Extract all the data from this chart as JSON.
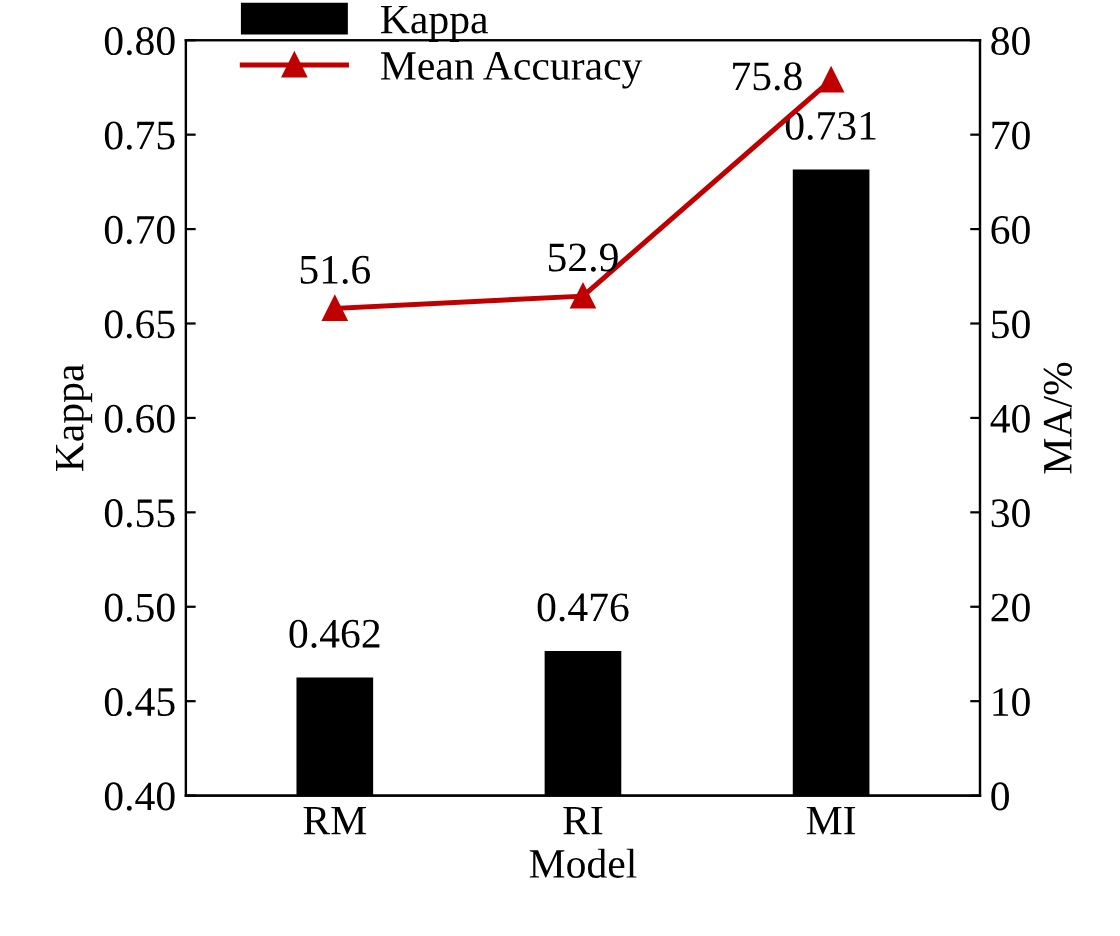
{
  "chart_data": {
    "type": "bar",
    "xlabel": "Model",
    "ylabel": "Kappa",
    "y2label": "MA/%",
    "categories": [
      "RM",
      "RI",
      "MI"
    ],
    "series": [
      {
        "name": "Kappa",
        "color": "#000000",
        "values": [
          0.462,
          0.476,
          0.731
        ]
      },
      {
        "name": "Mean Accuracy",
        "type": "line",
        "axis": "y2",
        "color": "#c00000",
        "values": [
          51.6,
          52.9,
          75.8
        ],
        "marker": "triangle",
        "line_style": "solid"
      }
    ],
    "ylim": [
      0.4,
      0.8
    ],
    "yticks": [
      {
        "value": 0.4,
        "label": "0.40"
      },
      {
        "value": 0.45,
        "label": "0.45"
      },
      {
        "value": 0.5,
        "label": "0.50"
      },
      {
        "value": 0.55,
        "label": "0.55"
      },
      {
        "value": 0.6,
        "label": "0.60"
      },
      {
        "value": 0.65,
        "label": "0.65"
      },
      {
        "value": 0.7,
        "label": "0.70"
      },
      {
        "value": 0.75,
        "label": "0.75"
      },
      {
        "value": 0.8,
        "label": "0.80"
      }
    ],
    "y2lim": [
      0,
      80
    ],
    "y2ticks": [
      0,
      10,
      20,
      30,
      40,
      50,
      60,
      70,
      80
    ],
    "data_labels": true,
    "legend": "top left",
    "grid": false
  }
}
